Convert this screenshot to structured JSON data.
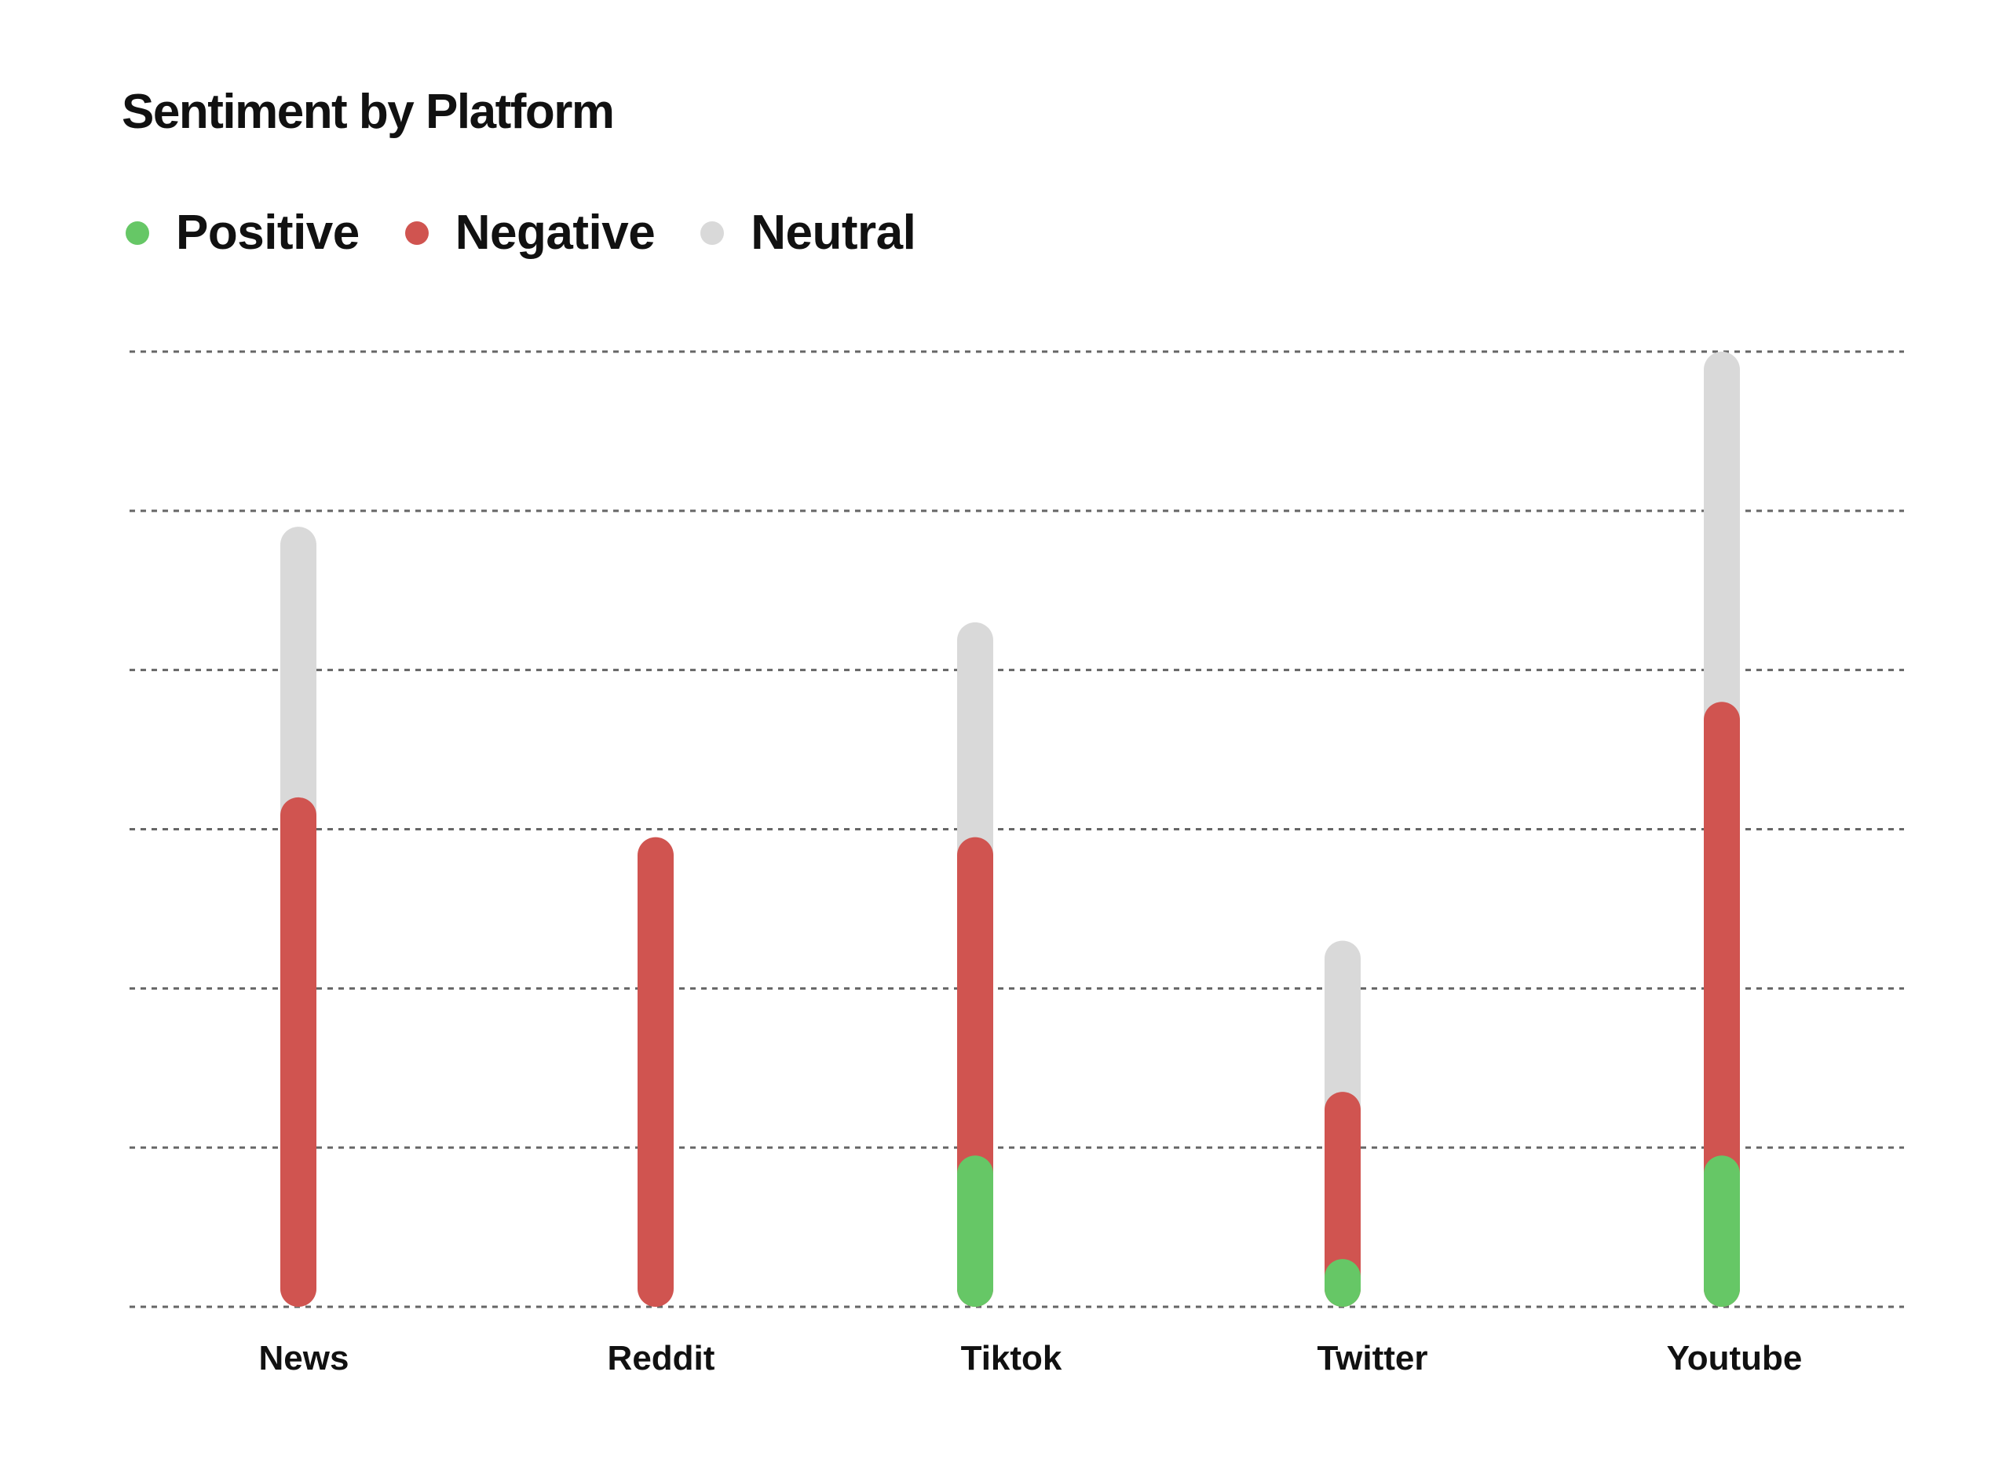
{
  "chart_data": {
    "type": "bar",
    "stacked": true,
    "title": "Sentiment by Platform",
    "categories": [
      "News",
      "Reddit",
      "Tiktok",
      "Twitter",
      "Youtube"
    ],
    "series": [
      {
        "name": "Positive",
        "color": "#66c766",
        "values": [
          0,
          0,
          19,
          6,
          19
        ]
      },
      {
        "name": "Negative",
        "color": "#d05450",
        "values": [
          64,
          59,
          40,
          21,
          57
        ]
      },
      {
        "name": "Neutral",
        "color": "#d9d9d9",
        "values": [
          34,
          0,
          27,
          19,
          44
        ]
      }
    ],
    "ylim": [
      0,
      120
    ],
    "yticks": [
      0,
      20,
      40,
      60,
      80,
      100,
      120
    ],
    "grid": true,
    "legend_position": "top-left",
    "xlabel": "",
    "ylabel": ""
  }
}
